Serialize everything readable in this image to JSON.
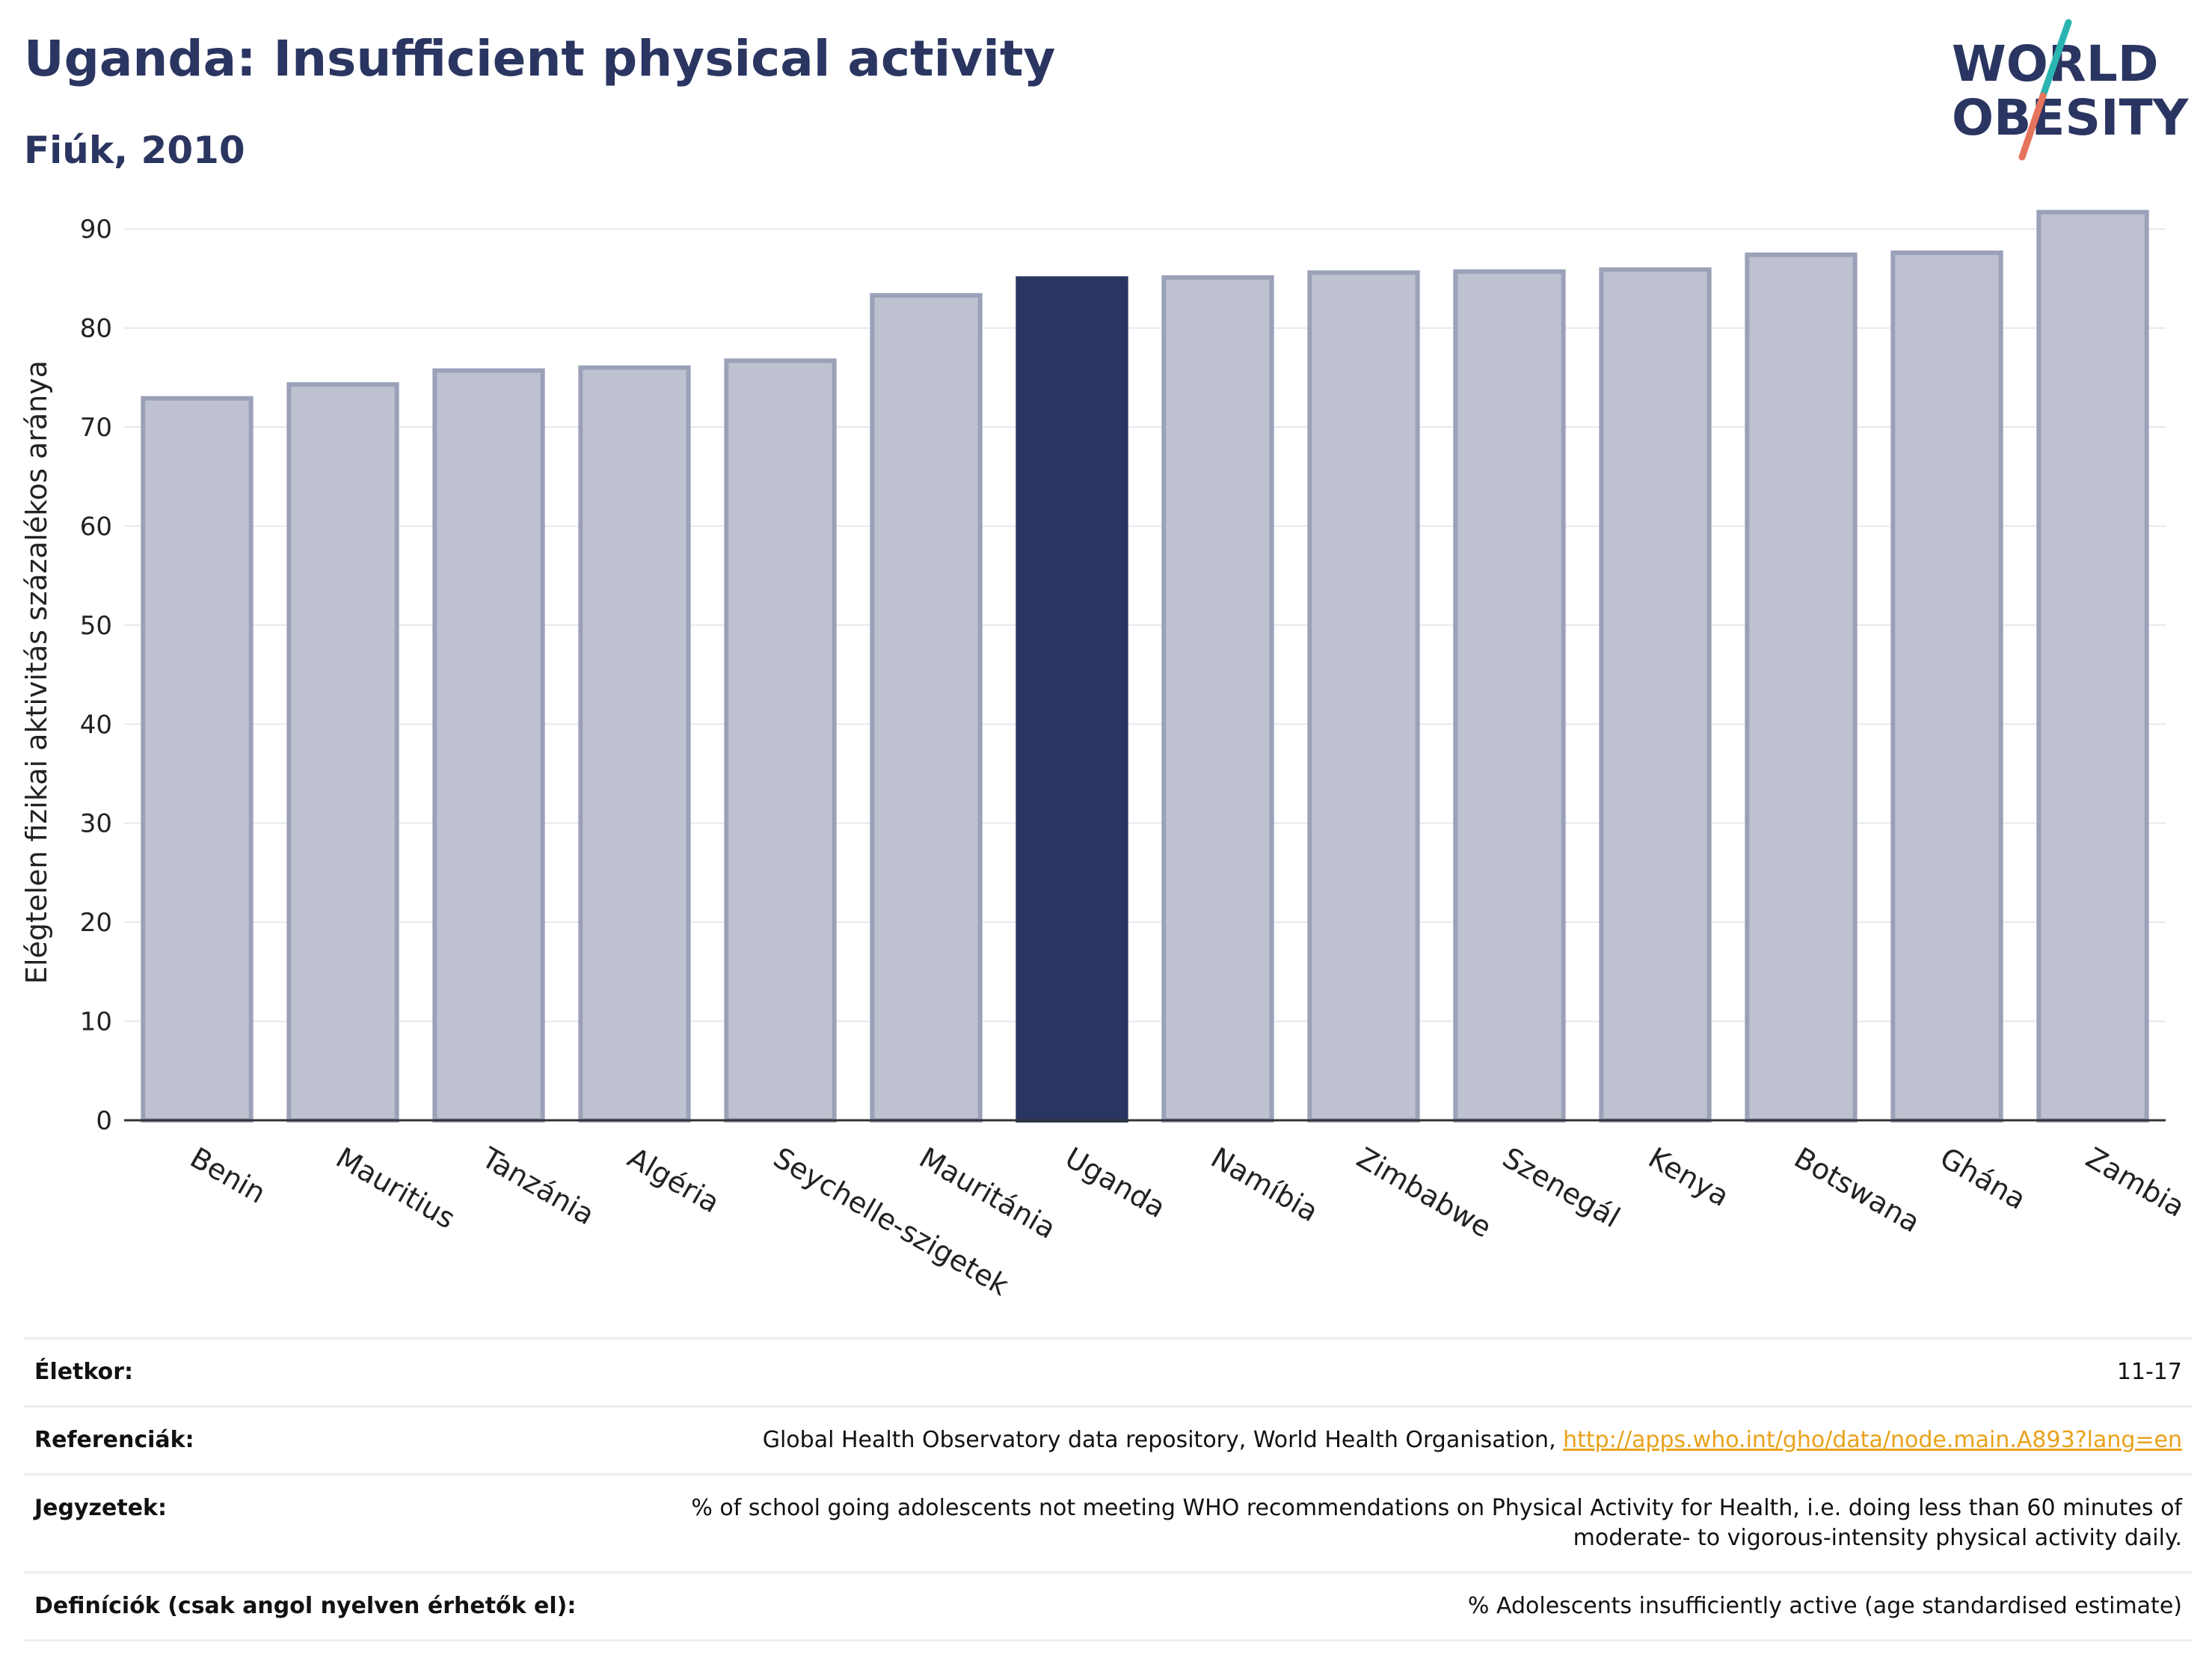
{
  "title": "Uganda: Insufficient physical activity",
  "subtitle": "Fiúk, 2010",
  "logo": {
    "line1": "WORLD",
    "line2": "OBESITY",
    "accent_colors": [
      "#2bb5b0",
      "#e6735c"
    ]
  },
  "chart_data": {
    "type": "bar",
    "categories": [
      "Benin",
      "Mauritius",
      "Tanzánia",
      "Algéria",
      "Seychelle-szigetek",
      "Mauritánia",
      "Uganda",
      "Namíbia",
      "Zimbabwe",
      "Szenegál",
      "Kenya",
      "Botswana",
      "Ghána",
      "Zambia"
    ],
    "values": [
      72.9,
      74.3,
      75.7,
      76.0,
      76.7,
      83.3,
      85.0,
      85.1,
      85.6,
      85.7,
      85.9,
      87.4,
      87.6,
      91.7
    ],
    "highlight": "Uganda",
    "ylabel": "Elégtelen fizikai aktivitás százalékos aránya",
    "xlabel": "",
    "ylim": [
      0,
      95
    ],
    "yticks": [
      0,
      10,
      20,
      30,
      40,
      50,
      60,
      70,
      80,
      90
    ],
    "grid": true,
    "colors": {
      "bar": "#bec2d0",
      "bar_edge": "#9aa1b8",
      "highlight": "#2a3561",
      "grid": "#e6e8ee",
      "axis": "#333333"
    }
  },
  "info": {
    "age_label": "Életkor:",
    "age_value": "11-17",
    "refs_label": "Referenciák:",
    "refs_text": "Global Health Observatory data repository, World Health Organisation, ",
    "refs_link": "http://apps.who.int/gho/data/node.main.A893?lang=en",
    "notes_label": "Jegyzetek:",
    "notes_line1": "% of school going adolescents not meeting WHO recommendations on Physical Activity for Health, i.e. doing less than 60 minutes of",
    "notes_line2": "moderate- to vigorous-intensity physical activity daily.",
    "defs_label": "Definíciók (csak angol nyelven érhetők el):",
    "defs_value": "% Adolescents insufficiently active (age standardised estimate)"
  }
}
